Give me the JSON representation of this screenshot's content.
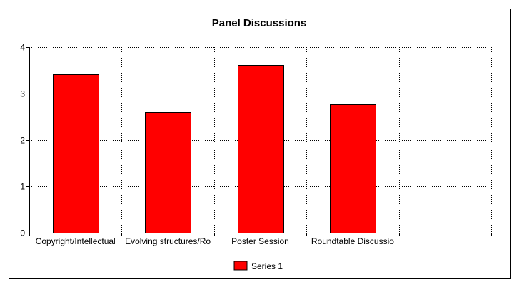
{
  "chart_data": {
    "type": "bar",
    "title": "Panel Discussions",
    "xlabel": "",
    "ylabel": "",
    "categories": [
      "Copyright/Intellectual",
      "Evolving structures/Ro",
      "Poster Session",
      "Roundtable Discussio",
      ""
    ],
    "series": [
      {
        "name": "Series 1",
        "values": [
          3.42,
          2.6,
          3.62,
          2.77,
          null
        ],
        "color": "#ff0000"
      }
    ],
    "ylim": [
      0,
      4
    ],
    "yticks": [
      "0",
      "1",
      "2",
      "3",
      "4"
    ],
    "grid": true,
    "legend": "bottom-center"
  }
}
